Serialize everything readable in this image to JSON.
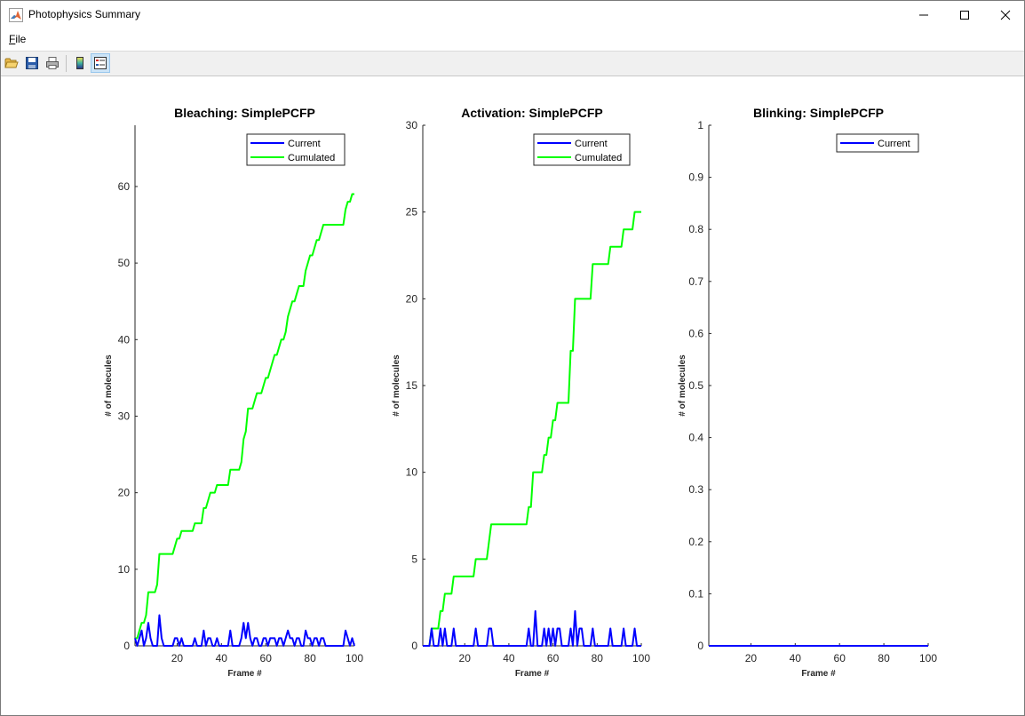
{
  "window": {
    "title": "Photophysics Summary",
    "icon": "matlab-icon",
    "controls": [
      "minimize-icon",
      "maximize-icon",
      "close-icon"
    ]
  },
  "menu": {
    "file_underlined": "F",
    "file_rest": "ile"
  },
  "toolbar": {
    "buttons": [
      "open-folder-icon",
      "save-icon",
      "print-icon",
      "colorbar-icon",
      "legend-icon"
    ],
    "active": "legend-icon"
  },
  "colors": {
    "current": "#0000ff",
    "cumulated": "#00ff00"
  },
  "chart_data": [
    {
      "type": "line",
      "title": "Bleaching: SimplePCFP",
      "xlabel": "Frame #",
      "ylabel": "# of molecules",
      "xlim": [
        1,
        100
      ],
      "ylim": [
        0,
        68
      ],
      "xticks": [
        20,
        40,
        60,
        80,
        100
      ],
      "yticks": [
        0,
        10,
        20,
        30,
        40,
        50,
        60
      ],
      "legend": {
        "placement": "top-right",
        "entries": [
          "Current",
          "Cumulated"
        ]
      },
      "series": [
        {
          "name": "Current",
          "color": "#0000ff",
          "x": [
            1,
            2,
            3,
            4,
            5,
            6,
            7,
            8,
            9,
            10,
            11,
            12,
            13,
            14,
            15,
            16,
            17,
            18,
            19,
            20,
            21,
            22,
            23,
            24,
            25,
            26,
            27,
            28,
            29,
            30,
            31,
            32,
            33,
            34,
            35,
            36,
            37,
            38,
            39,
            40,
            41,
            42,
            43,
            44,
            45,
            46,
            47,
            48,
            49,
            50,
            51,
            52,
            53,
            54,
            55,
            56,
            57,
            58,
            59,
            60,
            61,
            62,
            63,
            64,
            65,
            66,
            67,
            68,
            69,
            70,
            71,
            72,
            73,
            74,
            75,
            76,
            77,
            78,
            79,
            80,
            81,
            82,
            83,
            84,
            85,
            86,
            87,
            88,
            89,
            90,
            91,
            92,
            93,
            94,
            95,
            96,
            97,
            98,
            99,
            100
          ],
          "y": [
            1,
            0,
            1,
            2,
            0,
            1,
            3,
            1,
            0,
            0,
            0,
            4,
            1,
            0,
            0,
            0,
            0,
            0,
            1,
            1,
            0,
            1,
            0,
            0,
            0,
            0,
            0,
            1,
            0,
            0,
            0,
            2,
            0,
            1,
            1,
            0,
            0,
            1,
            0,
            0,
            0,
            0,
            0,
            2,
            0,
            0,
            0,
            0,
            1,
            3,
            1,
            3,
            1,
            0,
            1,
            1,
            0,
            0,
            1,
            1,
            0,
            1,
            1,
            1,
            0,
            1,
            1,
            0,
            1,
            2,
            1,
            1,
            0,
            1,
            1,
            0,
            0,
            2,
            1,
            1,
            0,
            1,
            1,
            0,
            1,
            1,
            0,
            0,
            0,
            0,
            0,
            0,
            0,
            0,
            0,
            2,
            1,
            0,
            1,
            0
          ]
        },
        {
          "name": "Cumulated",
          "color": "#00ff00",
          "x": [
            1,
            2,
            3,
            4,
            5,
            6,
            7,
            8,
            9,
            10,
            11,
            12,
            13,
            14,
            15,
            16,
            17,
            18,
            19,
            20,
            21,
            22,
            23,
            24,
            25,
            26,
            27,
            28,
            29,
            30,
            31,
            32,
            33,
            34,
            35,
            36,
            37,
            38,
            39,
            40,
            41,
            42,
            43,
            44,
            45,
            46,
            47,
            48,
            49,
            50,
            51,
            52,
            53,
            54,
            55,
            56,
            57,
            58,
            59,
            60,
            61,
            62,
            63,
            64,
            65,
            66,
            67,
            68,
            69,
            70,
            71,
            72,
            73,
            74,
            75,
            76,
            77,
            78,
            79,
            80,
            81,
            82,
            83,
            84,
            85,
            86,
            87,
            88,
            89,
            90,
            91,
            92,
            93,
            94,
            95,
            96,
            97,
            98,
            99,
            100
          ],
          "y": [
            1,
            1,
            2,
            3,
            3,
            4,
            7,
            7,
            7,
            7,
            8,
            12,
            12,
            12,
            12,
            12,
            12,
            12,
            13,
            14,
            14,
            15,
            15,
            15,
            15,
            15,
            15,
            16,
            16,
            16,
            16,
            18,
            18,
            19,
            20,
            20,
            20,
            21,
            21,
            21,
            21,
            21,
            21,
            23,
            23,
            23,
            23,
            23,
            24,
            27,
            28,
            31,
            31,
            31,
            32,
            33,
            33,
            33,
            34,
            35,
            35,
            36,
            37,
            38,
            38,
            39,
            40,
            40,
            41,
            43,
            44,
            45,
            45,
            46,
            47,
            47,
            47,
            49,
            50,
            51,
            51,
            52,
            53,
            53,
            54,
            55,
            55,
            55,
            55,
            55,
            55,
            55,
            55,
            55,
            55,
            57,
            58,
            58,
            59,
            59
          ]
        }
      ]
    },
    {
      "type": "line",
      "title": "Activation: SimplePCFP",
      "xlabel": "Frame #",
      "ylabel": "# of molecules",
      "xlim": [
        1,
        100
      ],
      "ylim": [
        0,
        30
      ],
      "xticks": [
        20,
        40,
        60,
        80,
        100
      ],
      "yticks": [
        0,
        5,
        10,
        15,
        20,
        25,
        30
      ],
      "legend": {
        "placement": "top-right",
        "entries": [
          "Current",
          "Cumulated"
        ]
      },
      "series": [
        {
          "name": "Current",
          "color": "#0000ff",
          "x": [
            1,
            2,
            3,
            4,
            5,
            6,
            7,
            8,
            9,
            10,
            11,
            12,
            13,
            14,
            15,
            16,
            17,
            18,
            19,
            20,
            21,
            22,
            23,
            24,
            25,
            26,
            27,
            28,
            29,
            30,
            31,
            32,
            33,
            34,
            35,
            36,
            37,
            38,
            39,
            40,
            41,
            42,
            43,
            44,
            45,
            46,
            47,
            48,
            49,
            50,
            51,
            52,
            53,
            54,
            55,
            56,
            57,
            58,
            59,
            60,
            61,
            62,
            63,
            64,
            65,
            66,
            67,
            68,
            69,
            70,
            71,
            72,
            73,
            74,
            75,
            76,
            77,
            78,
            79,
            80,
            81,
            82,
            83,
            84,
            85,
            86,
            87,
            88,
            89,
            90,
            91,
            92,
            93,
            94,
            95,
            96,
            97,
            98,
            99,
            100
          ],
          "y": [
            0,
            0,
            0,
            0,
            1,
            0,
            0,
            0,
            1,
            0,
            1,
            0,
            0,
            0,
            1,
            0,
            0,
            0,
            0,
            0,
            0,
            0,
            0,
            0,
            1,
            0,
            0,
            0,
            0,
            0,
            1,
            1,
            0,
            0,
            0,
            0,
            0,
            0,
            0,
            0,
            0,
            0,
            0,
            0,
            0,
            0,
            0,
            0,
            1,
            0,
            0,
            2,
            0,
            0,
            0,
            1,
            0,
            1,
            0,
            1,
            0,
            1,
            1,
            0,
            0,
            0,
            0,
            1,
            0,
            2,
            0,
            1,
            1,
            0,
            0,
            0,
            0,
            1,
            0,
            0,
            0,
            0,
            0,
            0,
            0,
            1,
            0,
            0,
            0,
            0,
            0,
            1,
            0,
            0,
            0,
            0,
            1,
            0,
            0,
            0
          ]
        },
        {
          "name": "Cumulated",
          "color": "#00ff00",
          "x": [
            1,
            2,
            3,
            4,
            5,
            6,
            7,
            8,
            9,
            10,
            11,
            12,
            13,
            14,
            15,
            16,
            17,
            18,
            19,
            20,
            21,
            22,
            23,
            24,
            25,
            26,
            27,
            28,
            29,
            30,
            31,
            32,
            33,
            34,
            35,
            36,
            37,
            38,
            39,
            40,
            41,
            42,
            43,
            44,
            45,
            46,
            47,
            48,
            49,
            50,
            51,
            52,
            53,
            54,
            55,
            56,
            57,
            58,
            59,
            60,
            61,
            62,
            63,
            64,
            65,
            66,
            67,
            68,
            69,
            70,
            71,
            72,
            73,
            74,
            75,
            76,
            77,
            78,
            79,
            80,
            81,
            82,
            83,
            84,
            85,
            86,
            87,
            88,
            89,
            90,
            91,
            92,
            93,
            94,
            95,
            96,
            97,
            98,
            99,
            100
          ],
          "y": [
            0,
            0,
            0,
            0,
            1,
            1,
            1,
            1,
            2,
            2,
            3,
            3,
            3,
            3,
            4,
            4,
            4,
            4,
            4,
            4,
            4,
            4,
            4,
            4,
            5,
            5,
            5,
            5,
            5,
            5,
            6,
            7,
            7,
            7,
            7,
            7,
            7,
            7,
            7,
            7,
            7,
            7,
            7,
            7,
            7,
            7,
            7,
            7,
            8,
            8,
            10,
            10,
            10,
            10,
            10,
            11,
            11,
            12,
            12,
            13,
            13,
            14,
            14,
            14,
            14,
            14,
            14,
            17,
            17,
            20,
            20,
            20,
            20,
            20,
            20,
            20,
            20,
            22,
            22,
            22,
            22,
            22,
            22,
            22,
            22,
            23,
            23,
            23,
            23,
            23,
            23,
            24,
            24,
            24,
            24,
            24,
            25,
            25,
            25,
            25
          ]
        }
      ]
    },
    {
      "type": "line",
      "title": "Blinking: SimplePCFP",
      "xlabel": "Frame #",
      "ylabel": "# of molecules",
      "xlim": [
        1,
        100
      ],
      "ylim": [
        0,
        1
      ],
      "xticks": [
        20,
        40,
        60,
        80,
        100
      ],
      "yticks": [
        0,
        0.1,
        0.2,
        0.3,
        0.4,
        0.5,
        0.6,
        0.7,
        0.8,
        0.9,
        1
      ],
      "legend": {
        "placement": "top-right",
        "entries": [
          "Current"
        ]
      },
      "series": [
        {
          "name": "Current",
          "color": "#0000ff",
          "x": [
            1,
            100
          ],
          "y": [
            0,
            0
          ]
        }
      ]
    }
  ]
}
